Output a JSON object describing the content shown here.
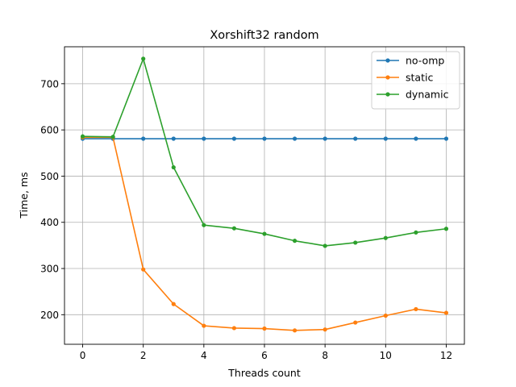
{
  "chart_data": {
    "type": "line",
    "title": "Xorshift32 random",
    "xlabel": "Threads count",
    "ylabel": "Time, ms",
    "xlim": [
      -0.6,
      12.6
    ],
    "ylim": [
      136,
      780
    ],
    "xticks": [
      0,
      2,
      4,
      6,
      8,
      10,
      12
    ],
    "yticks": [
      200,
      300,
      400,
      500,
      600,
      700
    ],
    "grid": true,
    "legend_position": "top-right",
    "x": [
      0,
      1,
      2,
      3,
      4,
      5,
      6,
      7,
      8,
      9,
      10,
      11,
      12
    ],
    "series": [
      {
        "name": "no-omp",
        "color": "#1f77b4",
        "values": [
          581,
          581,
          581,
          581,
          581,
          581,
          581,
          581,
          581,
          581,
          581,
          581,
          581
        ]
      },
      {
        "name": "static",
        "color": "#ff7f0e",
        "values": [
          584,
          584,
          298,
          223,
          176,
          171,
          170,
          166,
          168,
          183,
          198,
          212,
          204
        ]
      },
      {
        "name": "dynamic",
        "color": "#2ca02c",
        "values": [
          586,
          585,
          754,
          519,
          394,
          387,
          375,
          360,
          349,
          356,
          366,
          378,
          386
        ]
      }
    ]
  }
}
